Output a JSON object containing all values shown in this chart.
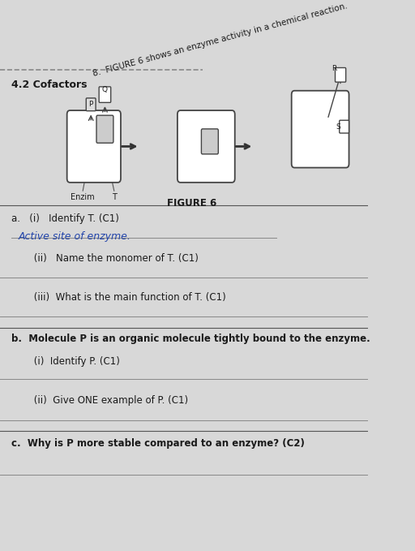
{
  "bg_color": "#d8d8d8",
  "title_section": "4.2 Cofactors",
  "question_intro": "8.  FIGURE 6 shows an enzyme activity in a chemical reaction.",
  "figure_label": "FIGURE 6",
  "enzyme_label": "Enzim",
  "T_label": "T",
  "P_label": "P",
  "Q_label": "Q",
  "R_label": "R",
  "S_label": "S",
  "handwritten_answer": "Active site of enzyme.",
  "questions": [
    "a.   (i)   Identify T. (C1)",
    "     (ii)   Name the monomer of T. (C1)",
    "     (iii)  What is the main function of T. (C1)",
    "b.  Molecule P is an organic molecule tightly bound to the enzyme.",
    "     (i)  Identify P. (C1)",
    "     (ii)  Give ONE example of P. (C1)",
    "c.  Why is P more stable compared to an enzyme? (C2)"
  ],
  "dashed_line_y": 0.985,
  "text_color": "#1a1a1a",
  "line_color": "#555555",
  "handwritten_color": "#2244aa"
}
